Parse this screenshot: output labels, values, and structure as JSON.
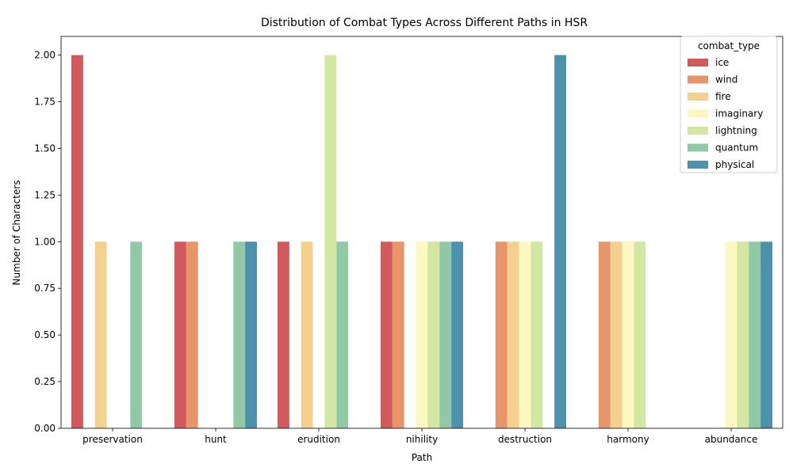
{
  "chart_data": {
    "type": "bar",
    "title": "Distribution of Combat Types Across Different Paths in HSR",
    "xlabel": "Path",
    "ylabel": "Number of Characters",
    "ylim": [
      0,
      2.1
    ],
    "yticks": [
      "0.00",
      "0.25",
      "0.50",
      "0.75",
      "1.00",
      "1.25",
      "1.50",
      "1.75",
      "2.00"
    ],
    "grid": false,
    "legend": {
      "title": "combat_type",
      "placement": "top-right"
    },
    "categories": [
      "preservation",
      "hunt",
      "erudition",
      "nihility",
      "destruction",
      "harmony",
      "abundance"
    ],
    "series": [
      {
        "name": "ice",
        "color": "#d05a5c",
        "values": [
          2,
          1,
          1,
          1,
          0,
          0,
          0
        ]
      },
      {
        "name": "wind",
        "color": "#e9956a",
        "values": [
          0,
          1,
          0,
          1,
          1,
          1,
          0
        ]
      },
      {
        "name": "fire",
        "color": "#f4d08f",
        "values": [
          1,
          0,
          1,
          0,
          1,
          1,
          0
        ]
      },
      {
        "name": "imaginary",
        "color": "#fbf8c2",
        "values": [
          0,
          0,
          0,
          1,
          1,
          1,
          1
        ]
      },
      {
        "name": "lightning",
        "color": "#d3e7a3",
        "values": [
          0,
          0,
          2,
          1,
          1,
          1,
          1
        ]
      },
      {
        "name": "quantum",
        "color": "#91c9a6",
        "values": [
          1,
          1,
          1,
          1,
          0,
          0,
          1
        ]
      },
      {
        "name": "physical",
        "color": "#4d91ad",
        "values": [
          0,
          1,
          0,
          1,
          2,
          0,
          1
        ]
      }
    ]
  }
}
